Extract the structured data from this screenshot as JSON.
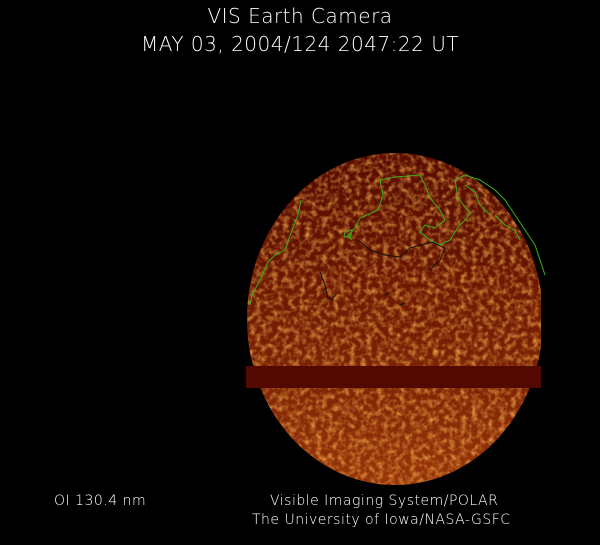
{
  "header": {
    "title": "VIS Earth Camera",
    "timestamp": "MAY 03, 2004/124 2047:22 UT"
  },
  "footer": {
    "filter": "OI  130.4 nm",
    "credit_line1": "Visible Imaging System/POLAR",
    "credit_line2": "The University of Iowa/NASA-GSFC"
  },
  "colors": {
    "background": "#000000",
    "disk_dark": "#5a0e00",
    "disk_bright": "#e0701a",
    "coastline": "#3fae1a"
  }
}
